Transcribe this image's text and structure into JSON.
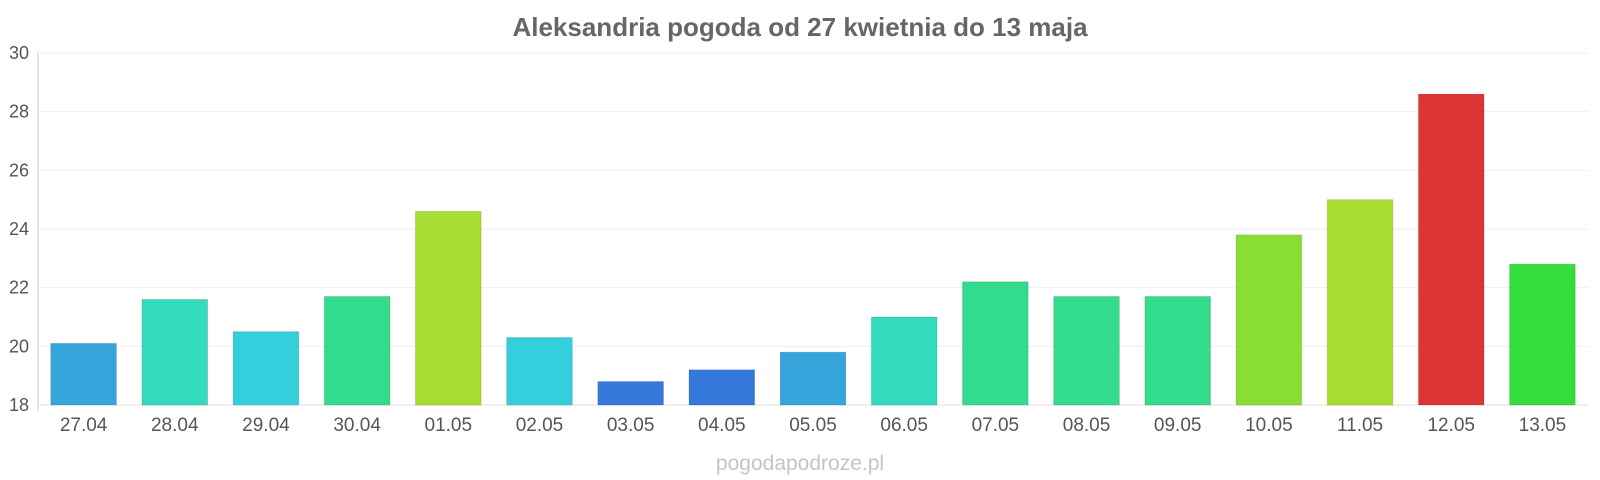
{
  "chart_data": {
    "type": "bar",
    "title": "Aleksandria pogoda od 27 kwietnia do 13 maja",
    "categories": [
      "27.04",
      "28.04",
      "29.04",
      "30.04",
      "01.05",
      "02.05",
      "03.05",
      "04.05",
      "05.05",
      "06.05",
      "07.05",
      "08.05",
      "09.05",
      "10.05",
      "11.05",
      "12.05",
      "13.05"
    ],
    "values": [
      20.1,
      21.6,
      20.5,
      21.7,
      24.6,
      20.3,
      18.8,
      19.2,
      19.8,
      21.0,
      22.2,
      21.7,
      21.7,
      23.8,
      25.0,
      28.6,
      22.8
    ],
    "colors": [
      "#35a5dc",
      "#33dcbc",
      "#33cfdc",
      "#33db8c",
      "#aadd33",
      "#33cfdc",
      "#3478dc",
      "#3478dc",
      "#35a5dc",
      "#33dcbc",
      "#33db8c",
      "#33db8c",
      "#33db8c",
      "#8add33",
      "#aadd33",
      "#dc3535",
      "#33dd3a"
    ],
    "ylim": [
      18,
      30
    ],
    "yticks": [
      "18",
      "20",
      "22",
      "24",
      "26",
      "28",
      "30"
    ],
    "grid": true,
    "xlabel": "",
    "ylabel": ""
  },
  "watermark": "pogodapodroze.pl"
}
